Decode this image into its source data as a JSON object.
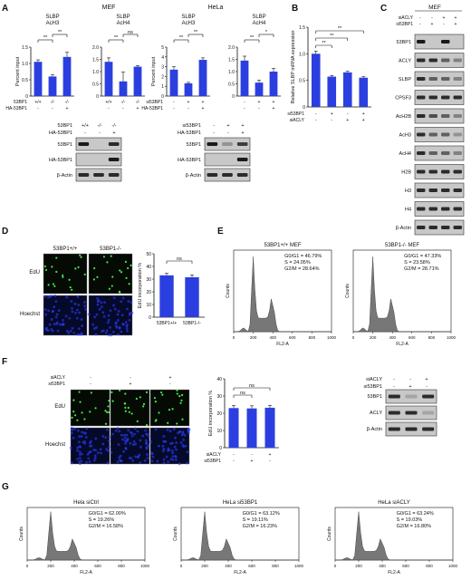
{
  "panels": {
    "A": {
      "letter": "A",
      "mef_title": "MEF",
      "hela_title": "HeLa",
      "ylabel": "Percent input",
      "mef_charts": [
        {
          "title_l1": "SLBP",
          "title_l2": "AcH3",
          "values": [
            1.05,
            0.6,
            1.2
          ],
          "errors": [
            0.06,
            0.05,
            0.14
          ],
          "yticks": [
            "0",
            "0.5",
            "1.0",
            "1.5"
          ],
          "ymax": 1.5,
          "sig_low": "**",
          "sig_high": "**"
        },
        {
          "title_l1": "SLBP",
          "title_l2": "AcH4",
          "values": [
            1.4,
            0.6,
            1.2
          ],
          "errors": [
            0.16,
            0.38,
            0.05
          ],
          "yticks": [
            "0",
            "0.5",
            "1.0",
            "1.5",
            "2.0"
          ],
          "ymax": 2.0,
          "sig_low": "**",
          "sig_high": "ns"
        }
      ],
      "hela_charts": [
        {
          "title_l1": "SLBP",
          "title_l2": "AcH3",
          "values": [
            2.7,
            1.3,
            3.7
          ],
          "errors": [
            0.3,
            0.1,
            0.2
          ],
          "yticks": [
            "0",
            "1",
            "2",
            "3",
            "4",
            "5"
          ],
          "ymax": 5,
          "sig_low": "**",
          "sig_high": "**"
        },
        {
          "title_l1": "SLBP",
          "title_l2": "AcH4",
          "values": [
            1.45,
            0.55,
            1.0
          ],
          "errors": [
            0.18,
            0.1,
            0.13
          ],
          "yticks": [
            "0",
            "0.5",
            "1.0",
            "1.5",
            "2.0"
          ],
          "ymax": 2.0,
          "sig_low": "**",
          "sig_high": "*"
        }
      ],
      "mef_cond": [
        {
          "label": "53BP1",
          "vals": [
            "+/+",
            "-/-",
            "-/-"
          ]
        },
        {
          "label": "HA-53BP1",
          "vals": [
            "-",
            "-",
            "+"
          ]
        }
      ],
      "hela_cond": [
        {
          "label": "si53BP1",
          "vals": [
            "-",
            "+",
            "+"
          ]
        },
        {
          "label": "HA-53BP1",
          "vals": [
            "-",
            "-",
            "+"
          ]
        }
      ],
      "mef_blot_header": [
        {
          "label": "53BP1",
          "vals": [
            "+/+",
            "-/-",
            "-/-"
          ]
        },
        {
          "label": "HA-53BP1",
          "vals": [
            "-",
            "-",
            "+"
          ]
        }
      ],
      "hela_blot_header": [
        {
          "label": "si53BP1",
          "vals": [
            "-",
            "+",
            "+"
          ]
        },
        {
          "label": "HA-53BP1",
          "vals": [
            "-",
            "-",
            "+"
          ]
        }
      ],
      "blot_rows": [
        "53BP1",
        "HA-53BP1",
        "β-Actin"
      ]
    },
    "B": {
      "letter": "B",
      "ylabel": "Relative SLBP mRNA expression",
      "values": [
        1.0,
        0.57,
        0.65,
        0.55
      ],
      "errors": [
        0.05,
        0.02,
        0.02,
        0.02
      ],
      "yticks": [
        "0",
        "0.5",
        "1.0",
        "1.5"
      ],
      "ymax": 1.5,
      "sig": [
        "**",
        "**",
        "**"
      ],
      "cond": [
        {
          "label": "si53BP1",
          "vals": [
            "-",
            "+",
            "-",
            "+"
          ]
        },
        {
          "label": "siACLY",
          "vals": [
            "-",
            "-",
            "+",
            "+"
          ]
        }
      ]
    },
    "C": {
      "letter": "C",
      "title": "MEF",
      "cond": [
        {
          "label": "siACLY",
          "vals": [
            "-",
            "-",
            "+",
            "+"
          ]
        },
        {
          "label": "si53BP1",
          "vals": [
            "-",
            "+",
            "-",
            "+"
          ]
        }
      ],
      "rows": [
        "53BP1",
        "ACLY",
        "SLBP",
        "CPSF3",
        "AcH2B",
        "AcH3",
        "AcH4",
        "H2B",
        "H3",
        "H4",
        "β-Actin"
      ]
    },
    "D": {
      "letter": "D",
      "col_labels": [
        "53BP1+/+",
        "53BP1-/-"
      ],
      "row_labels": [
        "EdU",
        "Hoechst"
      ],
      "chart": {
        "ylabel": "EdU incorporation %",
        "categories": [
          "53BP1+/+",
          "53BP1-/-"
        ],
        "values": [
          33,
          31.5
        ],
        "errors": [
          1.5,
          1.8
        ],
        "yticks": [
          "0",
          "10",
          "20",
          "30",
          "40",
          "50"
        ],
        "ymax": 50,
        "sig": "ns"
      }
    },
    "E": {
      "letter": "E",
      "xlabel": "FL2-A",
      "ylabel": "Counts",
      "xticks": [
        "0",
        "200",
        "400",
        "600",
        "800",
        "1000"
      ],
      "plots": [
        {
          "title": "53BP1+/+ MEF",
          "g0g1": "G0/G1 = 46.79%",
          "s": "S = 24.05%",
          "g2m": "G2/M = 28.64%"
        },
        {
          "title": "53BP1-/- MEF",
          "g0g1": "G0/G1 = 47.33%",
          "s": "S = 23.58%",
          "g2m": "G2/M = 28.71%"
        }
      ]
    },
    "F": {
      "letter": "F",
      "cond": [
        {
          "label": "siACLY",
          "vals": [
            "-",
            "-",
            "+"
          ]
        },
        {
          "label": "si53BP1",
          "vals": [
            "-",
            "+",
            "-"
          ]
        }
      ],
      "row_labels": [
        "EdU",
        "Hoechst"
      ],
      "chart": {
        "ylabel": "EdU incorporation %",
        "values": [
          23,
          22.8,
          23.2
        ],
        "errors": [
          1.5,
          1.5,
          1.4
        ],
        "yticks": [
          "0",
          "10",
          "20",
          "30",
          "40"
        ],
        "ymax": 40,
        "sig": [
          "ns",
          "ns"
        ],
        "cond": [
          {
            "label": "siACLY",
            "vals": [
              "-",
              "-",
              "+"
            ]
          },
          {
            "label": "si53BP1",
            "vals": [
              "-",
              "+",
              "-"
            ]
          }
        ]
      },
      "blot_cond": [
        {
          "label": "siACLY",
          "vals": [
            "-",
            "-",
            "+"
          ]
        },
        {
          "label": "si53BP1",
          "vals": [
            "-",
            "+",
            "-"
          ]
        }
      ],
      "blot_rows": [
        "53BP1",
        "ACLY",
        "β-Actin"
      ]
    },
    "G": {
      "letter": "G",
      "xlabel": "FL2-A",
      "ylabel": "Counts",
      "xticks": [
        "0",
        "200",
        "400",
        "600",
        "800",
        "1000"
      ],
      "plots": [
        {
          "title": "Hela siCtrl",
          "g0g1": "G0/G1 = 62.00%",
          "s": "S = 19.26%",
          "g2m": "G2/M = 16.58%"
        },
        {
          "title": "HeLa si53BP1",
          "g0g1": "G0/G1 = 63.12%",
          "s": "S = 19.11%",
          "g2m": "G2/M = 16.23%"
        },
        {
          "title": "HeLa siACLY",
          "g0g1": "G0/G1 = 63.24%",
          "s": "S = 19.03%",
          "g2m": "G2/M = 16.80%"
        }
      ]
    }
  },
  "colors": {
    "bar": "#2b3fe0",
    "blot_bg": "#c8c8c8",
    "band": "#1a1a1a",
    "histogram": "#777777",
    "micro_bg": "#0a0a1a"
  }
}
